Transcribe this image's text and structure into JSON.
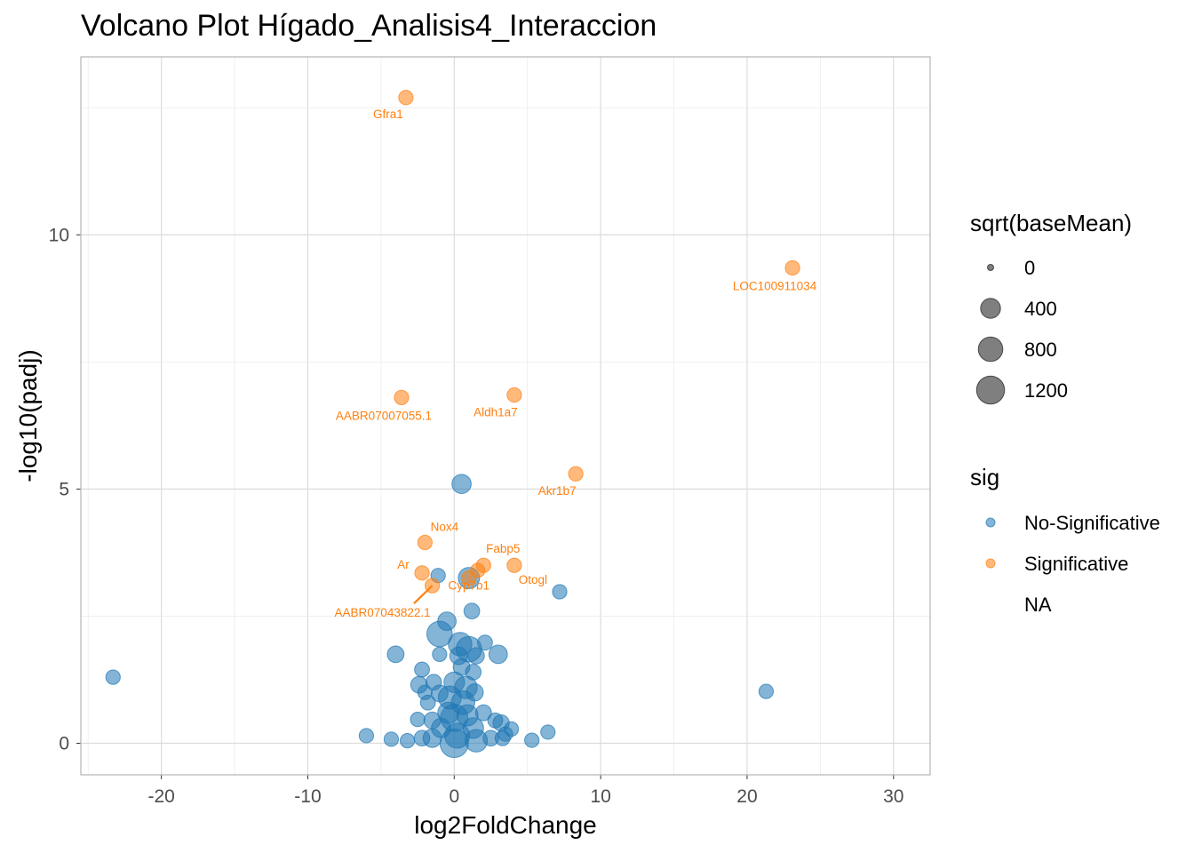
{
  "chart_data": {
    "type": "scatter",
    "title": "Volcano Plot Hígado_Analisis4_Interaccion",
    "xlabel": "log2FoldChange",
    "ylabel": "-log10(padj)",
    "xlim": [
      -25.5,
      32.5
    ],
    "ylim": [
      -0.62,
      13.5
    ],
    "x_ticks": [
      -20,
      -10,
      0,
      10,
      20,
      30
    ],
    "y_ticks": [
      0,
      5,
      10
    ],
    "grid": true,
    "colors": {
      "No-Significative": "#1f77b4",
      "Significative": "#ff7f0e"
    },
    "legend": {
      "position": "right",
      "size_title": "sqrt(baseMean)",
      "size_entries": [
        {
          "label": "0",
          "value": 0
        },
        {
          "label": "400",
          "value": 400
        },
        {
          "label": "800",
          "value": 800
        },
        {
          "label": "1200",
          "value": 1200
        }
      ],
      "color_title": "sig",
      "color_entries": [
        {
          "label": "No-Significative",
          "key": "No-Significative"
        },
        {
          "label": "Significative",
          "key": "Significative"
        },
        {
          "label": "NA",
          "key": "NA"
        }
      ]
    },
    "series": [
      {
        "name": "Significative",
        "points": [
          {
            "x": -3.3,
            "y": 12.7,
            "size": 100,
            "label": "Gfra1"
          },
          {
            "x": 23.1,
            "y": 9.35,
            "size": 100,
            "label": "LOC100911034"
          },
          {
            "x": -3.6,
            "y": 6.8,
            "size": 100,
            "label": "AABR07007055.1"
          },
          {
            "x": 4.1,
            "y": 6.85,
            "size": 100,
            "label": "Aldh1a7"
          },
          {
            "x": 8.3,
            "y": 5.3,
            "size": 100,
            "label": "Akr1b7"
          },
          {
            "x": -2.0,
            "y": 3.95,
            "size": 100,
            "label": "Nox4"
          },
          {
            "x": -2.2,
            "y": 3.35,
            "size": 100,
            "label": "Ar"
          },
          {
            "x": 2.0,
            "y": 3.5,
            "size": 100,
            "label": "Fabp5"
          },
          {
            "x": 1.6,
            "y": 3.4,
            "size": 100,
            "label": ""
          },
          {
            "x": 4.1,
            "y": 3.5,
            "size": 100,
            "label": "Otogl"
          },
          {
            "x": -1.5,
            "y": 3.1,
            "size": 100,
            "label": "AABR07043822.1"
          },
          {
            "x": 1.0,
            "y": 3.25,
            "size": 100,
            "label": "Cyp7b1"
          }
        ]
      },
      {
        "name": "No-Significative",
        "points": [
          {
            "x": 0.5,
            "y": 5.1,
            "size": 350
          },
          {
            "x": 1.0,
            "y": 3.25,
            "size": 500
          },
          {
            "x": -1.1,
            "y": 3.3,
            "size": 100
          },
          {
            "x": 7.2,
            "y": 2.98,
            "size": 100
          },
          {
            "x": 1.2,
            "y": 2.6,
            "size": 150
          },
          {
            "x": -0.5,
            "y": 2.4,
            "size": 300
          },
          {
            "x": -1.0,
            "y": 2.15,
            "size": 900
          },
          {
            "x": 0.4,
            "y": 1.95,
            "size": 700
          },
          {
            "x": 1.0,
            "y": 1.85,
            "size": 900
          },
          {
            "x": 2.1,
            "y": 1.98,
            "size": 120
          },
          {
            "x": -23.3,
            "y": 1.3,
            "size": 100
          },
          {
            "x": 21.3,
            "y": 1.02,
            "size": 100
          },
          {
            "x": -4.0,
            "y": 1.75,
            "size": 200
          },
          {
            "x": 3.0,
            "y": 1.75,
            "size": 300
          },
          {
            "x": -1.0,
            "y": 1.75,
            "size": 100
          },
          {
            "x": 0.3,
            "y": 1.72,
            "size": 250
          },
          {
            "x": 1.5,
            "y": 1.72,
            "size": 180
          },
          {
            "x": -2.2,
            "y": 1.45,
            "size": 120
          },
          {
            "x": 0.5,
            "y": 1.5,
            "size": 200
          },
          {
            "x": 1.3,
            "y": 1.4,
            "size": 150
          },
          {
            "x": -2.4,
            "y": 1.15,
            "size": 200
          },
          {
            "x": -1.4,
            "y": 1.2,
            "size": 150
          },
          {
            "x": 0.0,
            "y": 1.2,
            "size": 450
          },
          {
            "x": 0.8,
            "y": 1.1,
            "size": 600
          },
          {
            "x": -2.0,
            "y": 1.0,
            "size": 100
          },
          {
            "x": -1.0,
            "y": 0.98,
            "size": 200
          },
          {
            "x": 1.4,
            "y": 1.0,
            "size": 220
          },
          {
            "x": -0.3,
            "y": 0.9,
            "size": 650
          },
          {
            "x": 0.6,
            "y": 0.8,
            "size": 700
          },
          {
            "x": -1.8,
            "y": 0.8,
            "size": 120
          },
          {
            "x": 2.0,
            "y": 0.6,
            "size": 160
          },
          {
            "x": -2.5,
            "y": 0.47,
            "size": 100
          },
          {
            "x": 2.8,
            "y": 0.45,
            "size": 120
          },
          {
            "x": 3.2,
            "y": 0.4,
            "size": 180
          },
          {
            "x": -1.5,
            "y": 0.45,
            "size": 200
          },
          {
            "x": 0.0,
            "y": 0.5,
            "size": 1100
          },
          {
            "x": 1.3,
            "y": 0.3,
            "size": 450
          },
          {
            "x": -0.9,
            "y": 0.3,
            "size": 350
          },
          {
            "x": 0.2,
            "y": 0.15,
            "size": 850
          },
          {
            "x": 1.5,
            "y": 0.05,
            "size": 600
          },
          {
            "x": -1.5,
            "y": 0.1,
            "size": 300
          },
          {
            "x": -6.0,
            "y": 0.15,
            "size": 100
          },
          {
            "x": -4.3,
            "y": 0.08,
            "size": 100
          },
          {
            "x": -3.2,
            "y": 0.05,
            "size": 100
          },
          {
            "x": -2.2,
            "y": 0.1,
            "size": 150
          },
          {
            "x": 2.5,
            "y": 0.1,
            "size": 150
          },
          {
            "x": 3.3,
            "y": 0.1,
            "size": 120
          },
          {
            "x": 3.9,
            "y": 0.28,
            "size": 100
          },
          {
            "x": 3.5,
            "y": 0.18,
            "size": 100
          },
          {
            "x": 5.3,
            "y": 0.06,
            "size": 100
          },
          {
            "x": 6.4,
            "y": 0.22,
            "size": 100
          },
          {
            "x": 0.0,
            "y": 0.0,
            "size": 1250
          },
          {
            "x": -0.4,
            "y": 0.6,
            "size": 500
          },
          {
            "x": 0.9,
            "y": 0.55,
            "size": 500
          }
        ]
      }
    ],
    "label_offsets": {
      "Gfra1": [
        -20,
        23
      ],
      "LOC100911034": [
        -20,
        25
      ],
      "AABR07007055.1": [
        -20,
        25
      ],
      "Aldh1a7": [
        -21,
        24
      ],
      "Akr1b7": [
        -21,
        24
      ],
      "Nox4": [
        22,
        -13
      ],
      "Ar": [
        -21,
        -5
      ],
      "Fabp5": [
        22,
        -14
      ],
      "Otogl": [
        21,
        21
      ],
      "AABR07043822.1": [
        -56,
        35
      ],
      "Cyp7b1": [
        0,
        13
      ]
    },
    "label_segments": {
      "AABR07043822.1": [
        [
          -1.5,
          3.1
        ],
        [
          -2.75,
          2.75
        ]
      ]
    }
  }
}
